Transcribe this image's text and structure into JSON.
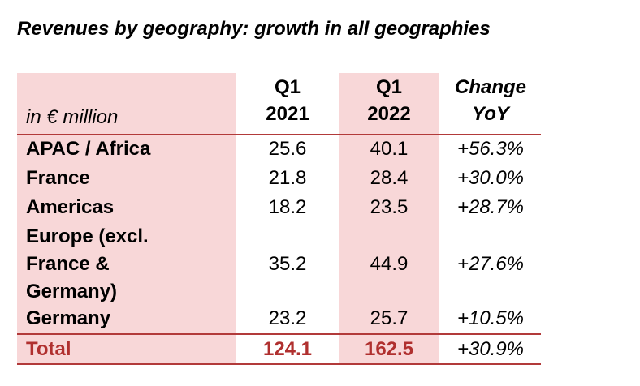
{
  "title": "Revenues by geography: growth in all geographies",
  "table": {
    "unit_label": "in € million",
    "columns": [
      {
        "line1": "Q1",
        "line2": "2021"
      },
      {
        "line1": "Q1",
        "line2": "2022"
      },
      {
        "line1": "Change",
        "line2": "YoY"
      }
    ],
    "rows": [
      {
        "label": "APAC / Africa",
        "q1_2021": "25.6",
        "q1_2022": "40.1",
        "change": "+56.3%"
      },
      {
        "label": "France",
        "q1_2021": "21.8",
        "q1_2022": "28.4",
        "change": "+30.0%"
      },
      {
        "label": "Americas",
        "q1_2021": "18.2",
        "q1_2022": "23.5",
        "change": "+28.7%"
      },
      {
        "label_lines": [
          "Europe (excl.",
          "France &",
          "Germany)"
        ],
        "q1_2021": "35.2",
        "q1_2022": "44.9",
        "change": "+27.6%"
      },
      {
        "label": "Germany",
        "q1_2021": "23.2",
        "q1_2022": "25.7",
        "change": "+10.5%"
      }
    ],
    "total": {
      "label": "Total",
      "q1_2021": "124.1",
      "q1_2022": "162.5",
      "change": "+30.9%"
    }
  },
  "colors": {
    "band": "#f8d7d8",
    "accent": "#b0302f"
  }
}
